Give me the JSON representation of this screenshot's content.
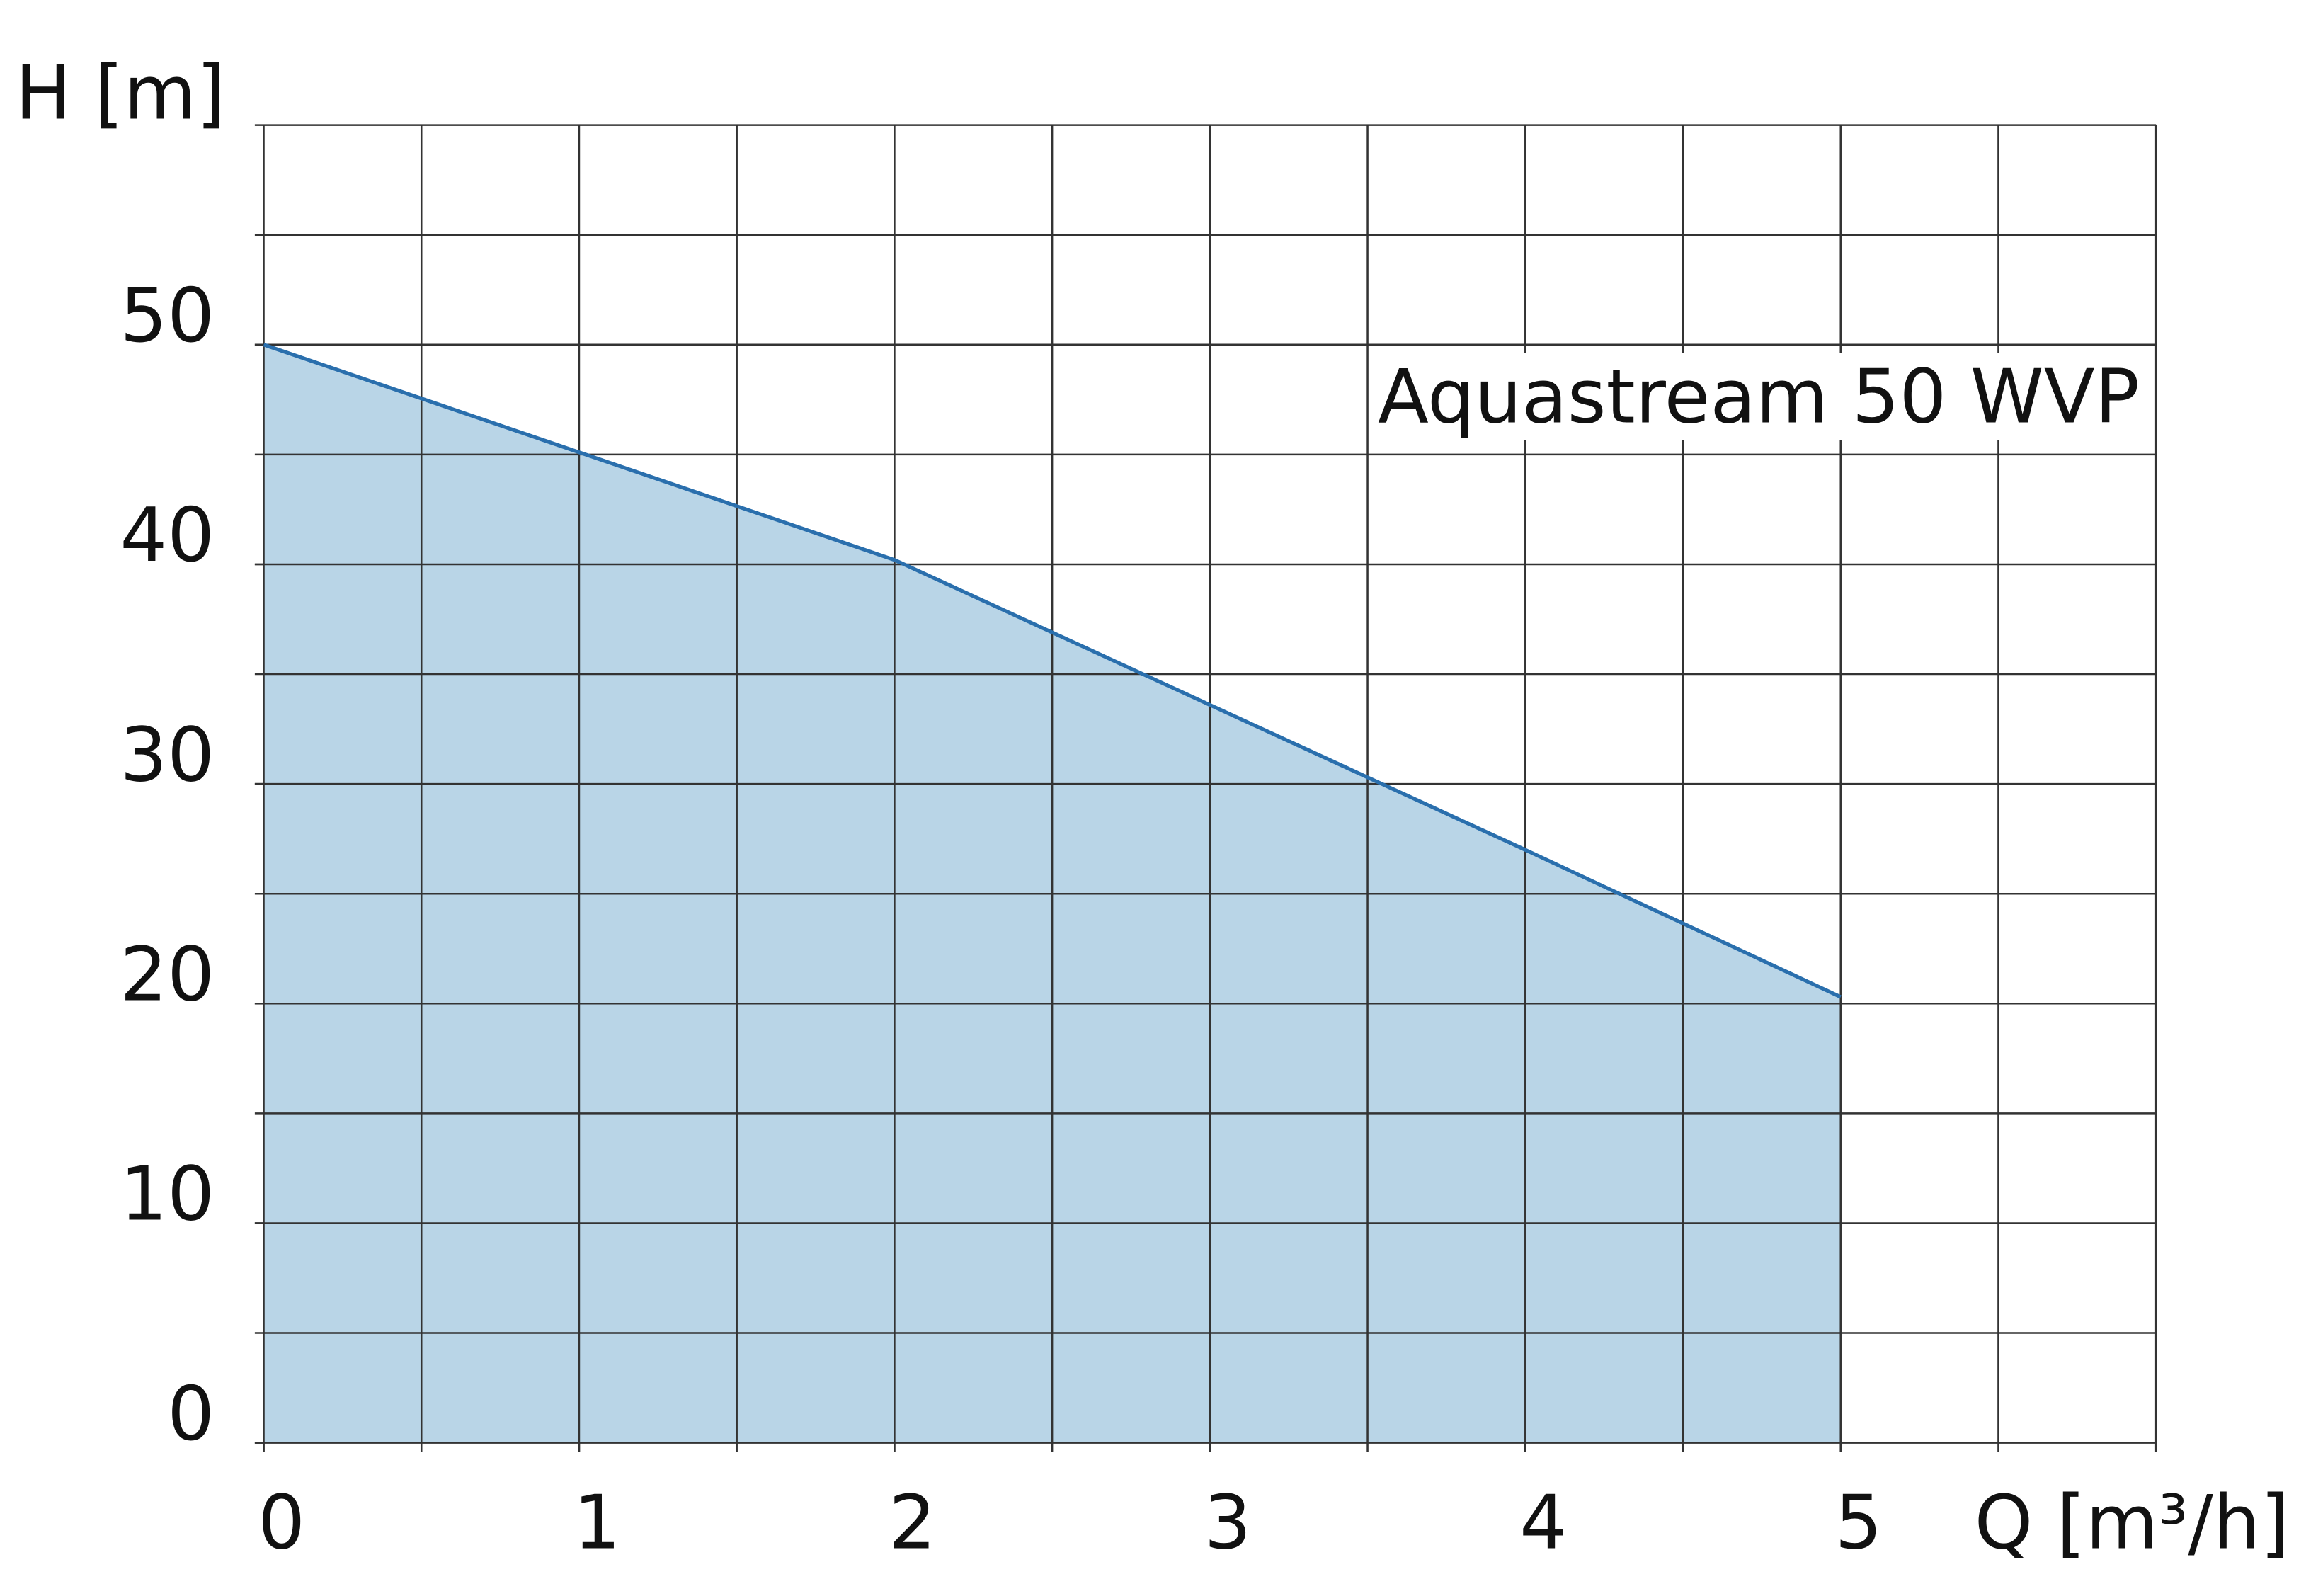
{
  "chart_data": {
    "type": "area",
    "x_label": "Q [m³/h]",
    "y_label": "H [m]",
    "x": [
      0,
      1,
      2,
      3,
      4,
      5
    ],
    "series": [
      {
        "name": "Aquastream 50 WVP",
        "color": "#2a6fad",
        "fill": "#b9d5e7",
        "values": [
          50,
          45.1,
          40.2,
          33.6,
          27,
          20.3
        ]
      }
    ],
    "xlim": [
      0,
      6
    ],
    "ylim": [
      0,
      60
    ],
    "xticks": [
      0,
      1,
      2,
      3,
      4,
      5
    ],
    "yticks": [
      0,
      10,
      20,
      30,
      40,
      50
    ],
    "grid": true,
    "xgrid_step": 0.5,
    "ygrid_step": 5
  }
}
